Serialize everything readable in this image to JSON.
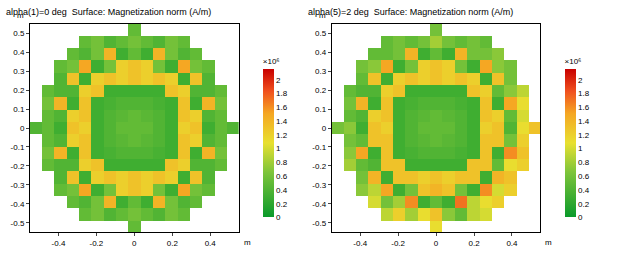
{
  "chart_data": [
    {
      "type": "heatmap",
      "title": "alpha(1)=0 deg  Surface: Magnetization norm (A/m)",
      "x_label": "m",
      "y_label": "m",
      "x": [
        -0.52,
        -0.455,
        -0.39,
        -0.325,
        -0.26,
        -0.195,
        -0.13,
        -0.065,
        0,
        0.065,
        0.13,
        0.195,
        0.26,
        0.325,
        0.39,
        0.455,
        0.52
      ],
      "y": [
        -0.52,
        -0.455,
        -0.39,
        -0.325,
        -0.26,
        -0.195,
        -0.13,
        -0.065,
        0,
        0.065,
        0.13,
        0.195,
        0.26,
        0.325,
        0.39,
        0.455,
        0.52
      ],
      "cells": [
        [
          null,
          null,
          null,
          null,
          null,
          null,
          null,
          null,
          0.5,
          null,
          null,
          null,
          null,
          null,
          null,
          null,
          null
        ],
        [
          null,
          null,
          null,
          null,
          0.5,
          0.6,
          0.4,
          0.5,
          0.6,
          0.5,
          0.4,
          0.6,
          0.5,
          null,
          null,
          null,
          null
        ],
        [
          null,
          null,
          null,
          0.5,
          0.4,
          0.6,
          1.4,
          0.3,
          0.5,
          0.3,
          1.4,
          0.6,
          0.4,
          0.5,
          null,
          null,
          null
        ],
        [
          null,
          null,
          0.5,
          0.6,
          1.5,
          0.3,
          0.6,
          1.2,
          1.3,
          1.2,
          0.6,
          0.3,
          1.5,
          0.6,
          0.5,
          null,
          null
        ],
        [
          null,
          null,
          0.4,
          1.3,
          0.3,
          1.2,
          1.3,
          1.2,
          1.3,
          1.2,
          1.3,
          1.2,
          0.3,
          1.3,
          0.4,
          null,
          null
        ],
        [
          null,
          0.5,
          0.4,
          0.4,
          1.2,
          1.3,
          0.3,
          0.3,
          0.3,
          0.3,
          0.3,
          1.3,
          1.2,
          0.4,
          0.4,
          0.5,
          null
        ],
        [
          null,
          0.6,
          1.4,
          0.3,
          1.3,
          0.3,
          0.35,
          0.4,
          0.4,
          0.4,
          0.35,
          0.3,
          1.3,
          0.3,
          1.4,
          0.6,
          null
        ],
        [
          null,
          0.5,
          0.4,
          1.2,
          1.3,
          0.3,
          0.4,
          0.45,
          0.5,
          0.45,
          0.4,
          0.3,
          1.3,
          1.2,
          0.4,
          0.5,
          null
        ],
        [
          0.4,
          0.5,
          0.3,
          1.3,
          1.2,
          0.3,
          0.4,
          0.5,
          0.5,
          0.5,
          0.4,
          0.3,
          1.2,
          1.3,
          0.3,
          0.5,
          0.4
        ],
        [
          null,
          0.5,
          0.4,
          1.2,
          1.3,
          0.3,
          0.4,
          0.45,
          0.5,
          0.45,
          0.4,
          0.3,
          1.3,
          1.2,
          0.4,
          0.5,
          null
        ],
        [
          null,
          0.6,
          1.4,
          0.3,
          1.3,
          0.3,
          0.35,
          0.4,
          0.4,
          0.4,
          0.35,
          0.3,
          1.3,
          0.3,
          1.4,
          0.6,
          null
        ],
        [
          null,
          0.5,
          0.4,
          0.4,
          1.2,
          1.3,
          0.3,
          0.3,
          0.3,
          0.3,
          0.3,
          1.3,
          1.2,
          0.4,
          0.4,
          0.5,
          null
        ],
        [
          null,
          null,
          0.4,
          1.3,
          0.3,
          1.2,
          1.3,
          1.2,
          1.3,
          1.2,
          1.3,
          1.2,
          0.3,
          1.3,
          0.4,
          null,
          null
        ],
        [
          null,
          null,
          0.5,
          0.6,
          1.5,
          0.3,
          0.6,
          1.2,
          1.3,
          1.2,
          0.6,
          0.3,
          1.5,
          0.6,
          0.5,
          null,
          null
        ],
        [
          null,
          null,
          null,
          0.5,
          0.4,
          0.6,
          1.4,
          0.3,
          0.5,
          0.3,
          1.4,
          0.6,
          0.4,
          0.5,
          null,
          null,
          null
        ],
        [
          null,
          null,
          null,
          null,
          0.5,
          0.6,
          0.4,
          0.5,
          0.6,
          0.5,
          0.4,
          0.6,
          0.5,
          null,
          null,
          null,
          null
        ],
        [
          null,
          null,
          null,
          null,
          null,
          null,
          null,
          null,
          0.5,
          null,
          null,
          null,
          null,
          null,
          null,
          null,
          null
        ]
      ],
      "xlim": [
        -0.55,
        0.55
      ],
      "ylim": [
        -0.55,
        0.55
      ],
      "xticks": [
        -0.4,
        -0.2,
        0,
        0.2,
        0.4
      ],
      "yticks": [
        -0.5,
        -0.4,
        -0.3,
        -0.2,
        -0.1,
        0,
        0.1,
        0.2,
        0.3,
        0.4,
        0.5
      ],
      "colorbar_range": [
        0,
        2.15
      ],
      "colorbar_ticks": [
        0,
        0.2,
        0.4,
        0.6,
        0.8,
        1,
        1.2,
        1.4,
        1.6,
        1.8,
        2
      ],
      "colorbar_label": "×10⁶"
    },
    {
      "type": "heatmap",
      "title": "alpha(5)=2 deg  Surface: Magnetization norm (A/m)",
      "x_label": "m",
      "y_label": "m",
      "x": [
        -0.52,
        -0.455,
        -0.39,
        -0.325,
        -0.26,
        -0.195,
        -0.13,
        -0.065,
        0,
        0.065,
        0.13,
        0.195,
        0.26,
        0.325,
        0.39,
        0.455,
        0.52
      ],
      "y": [
        -0.52,
        -0.455,
        -0.39,
        -0.325,
        -0.26,
        -0.195,
        -0.13,
        -0.065,
        0,
        0.065,
        0.13,
        0.195,
        0.26,
        0.325,
        0.39,
        0.455,
        0.52
      ],
      "cells": [
        [
          null,
          null,
          null,
          null,
          null,
          null,
          null,
          null,
          1.1,
          null,
          null,
          null,
          null,
          null,
          null,
          null,
          null
        ],
        [
          null,
          null,
          null,
          null,
          0.9,
          1.2,
          0.8,
          1.1,
          1.3,
          0.7,
          0.5,
          0.9,
          1.0,
          null,
          null,
          null,
          null
        ],
        [
          null,
          null,
          null,
          1.0,
          0.6,
          0.8,
          1.6,
          0.3,
          0.5,
          0.3,
          1.7,
          0.9,
          1.1,
          1.2,
          null,
          null,
          null
        ],
        [
          null,
          null,
          0.7,
          0.9,
          1.5,
          0.3,
          0.6,
          1.3,
          1.4,
          1.3,
          0.6,
          0.3,
          1.6,
          1.0,
          1.2,
          null,
          null
        ],
        [
          null,
          null,
          0.6,
          1.4,
          0.3,
          1.3,
          1.3,
          1.2,
          1.3,
          1.2,
          1.3,
          1.3,
          0.3,
          1.4,
          1.3,
          null,
          null
        ],
        [
          null,
          0.8,
          0.5,
          0.4,
          1.3,
          1.3,
          0.3,
          0.3,
          0.3,
          0.3,
          0.3,
          1.3,
          1.3,
          0.5,
          1.1,
          1.2,
          null
        ],
        [
          null,
          0.7,
          1.5,
          0.3,
          1.3,
          0.3,
          0.35,
          0.4,
          0.4,
          0.4,
          0.35,
          0.3,
          1.3,
          0.3,
          1.6,
          1.3,
          null
        ],
        [
          null,
          0.6,
          0.5,
          1.3,
          1.3,
          0.3,
          0.4,
          0.45,
          0.5,
          0.45,
          0.4,
          0.3,
          1.3,
          1.3,
          0.6,
          1.2,
          null
        ],
        [
          0.6,
          0.7,
          0.3,
          1.3,
          1.2,
          0.3,
          0.4,
          0.5,
          0.5,
          0.5,
          0.4,
          0.3,
          1.2,
          1.3,
          0.4,
          1.1,
          1.3
        ],
        [
          null,
          0.5,
          0.4,
          1.2,
          1.3,
          0.3,
          0.4,
          0.45,
          0.5,
          0.45,
          0.4,
          0.3,
          1.3,
          1.2,
          0.5,
          1.0,
          null
        ],
        [
          null,
          0.6,
          1.4,
          0.3,
          1.3,
          0.3,
          0.35,
          0.4,
          0.4,
          0.4,
          0.35,
          0.3,
          1.3,
          0.3,
          1.5,
          1.1,
          null
        ],
        [
          null,
          0.5,
          0.4,
          0.4,
          1.2,
          1.3,
          0.3,
          0.3,
          0.3,
          0.3,
          0.3,
          1.3,
          1.2,
          0.5,
          0.7,
          0.9,
          null
        ],
        [
          null,
          null,
          0.5,
          1.3,
          0.3,
          1.2,
          1.3,
          1.2,
          1.3,
          1.2,
          1.3,
          1.2,
          0.3,
          1.3,
          0.6,
          null,
          null
        ],
        [
          null,
          null,
          0.6,
          0.7,
          1.5,
          0.3,
          0.6,
          1.2,
          1.3,
          1.2,
          0.6,
          0.3,
          1.5,
          0.7,
          0.6,
          null,
          null
        ],
        [
          null,
          null,
          null,
          0.5,
          0.5,
          0.6,
          1.4,
          0.3,
          0.5,
          0.3,
          1.4,
          0.6,
          0.6,
          0.7,
          null,
          null,
          null
        ],
        [
          null,
          null,
          null,
          null,
          0.5,
          0.6,
          0.5,
          0.6,
          0.8,
          0.6,
          0.5,
          0.6,
          0.5,
          null,
          null,
          null,
          null
        ],
        [
          null,
          null,
          null,
          null,
          null,
          null,
          null,
          null,
          0.6,
          null,
          null,
          null,
          null,
          null,
          null,
          null,
          null
        ]
      ],
      "xlim": [
        -0.55,
        0.55
      ],
      "ylim": [
        -0.55,
        0.55
      ],
      "xticks": [
        -0.4,
        -0.2,
        0,
        0.2,
        0.4
      ],
      "yticks": [
        -0.5,
        -0.4,
        -0.3,
        -0.2,
        -0.1,
        0,
        0.1,
        0.2,
        0.3,
        0.4,
        0.5
      ],
      "colorbar_range": [
        0,
        2.15
      ],
      "colorbar_ticks": [
        0,
        0.2,
        0.4,
        0.6,
        0.8,
        1,
        1.2,
        1.4,
        1.6,
        1.8,
        2
      ],
      "colorbar_label": "×10⁶"
    }
  ]
}
